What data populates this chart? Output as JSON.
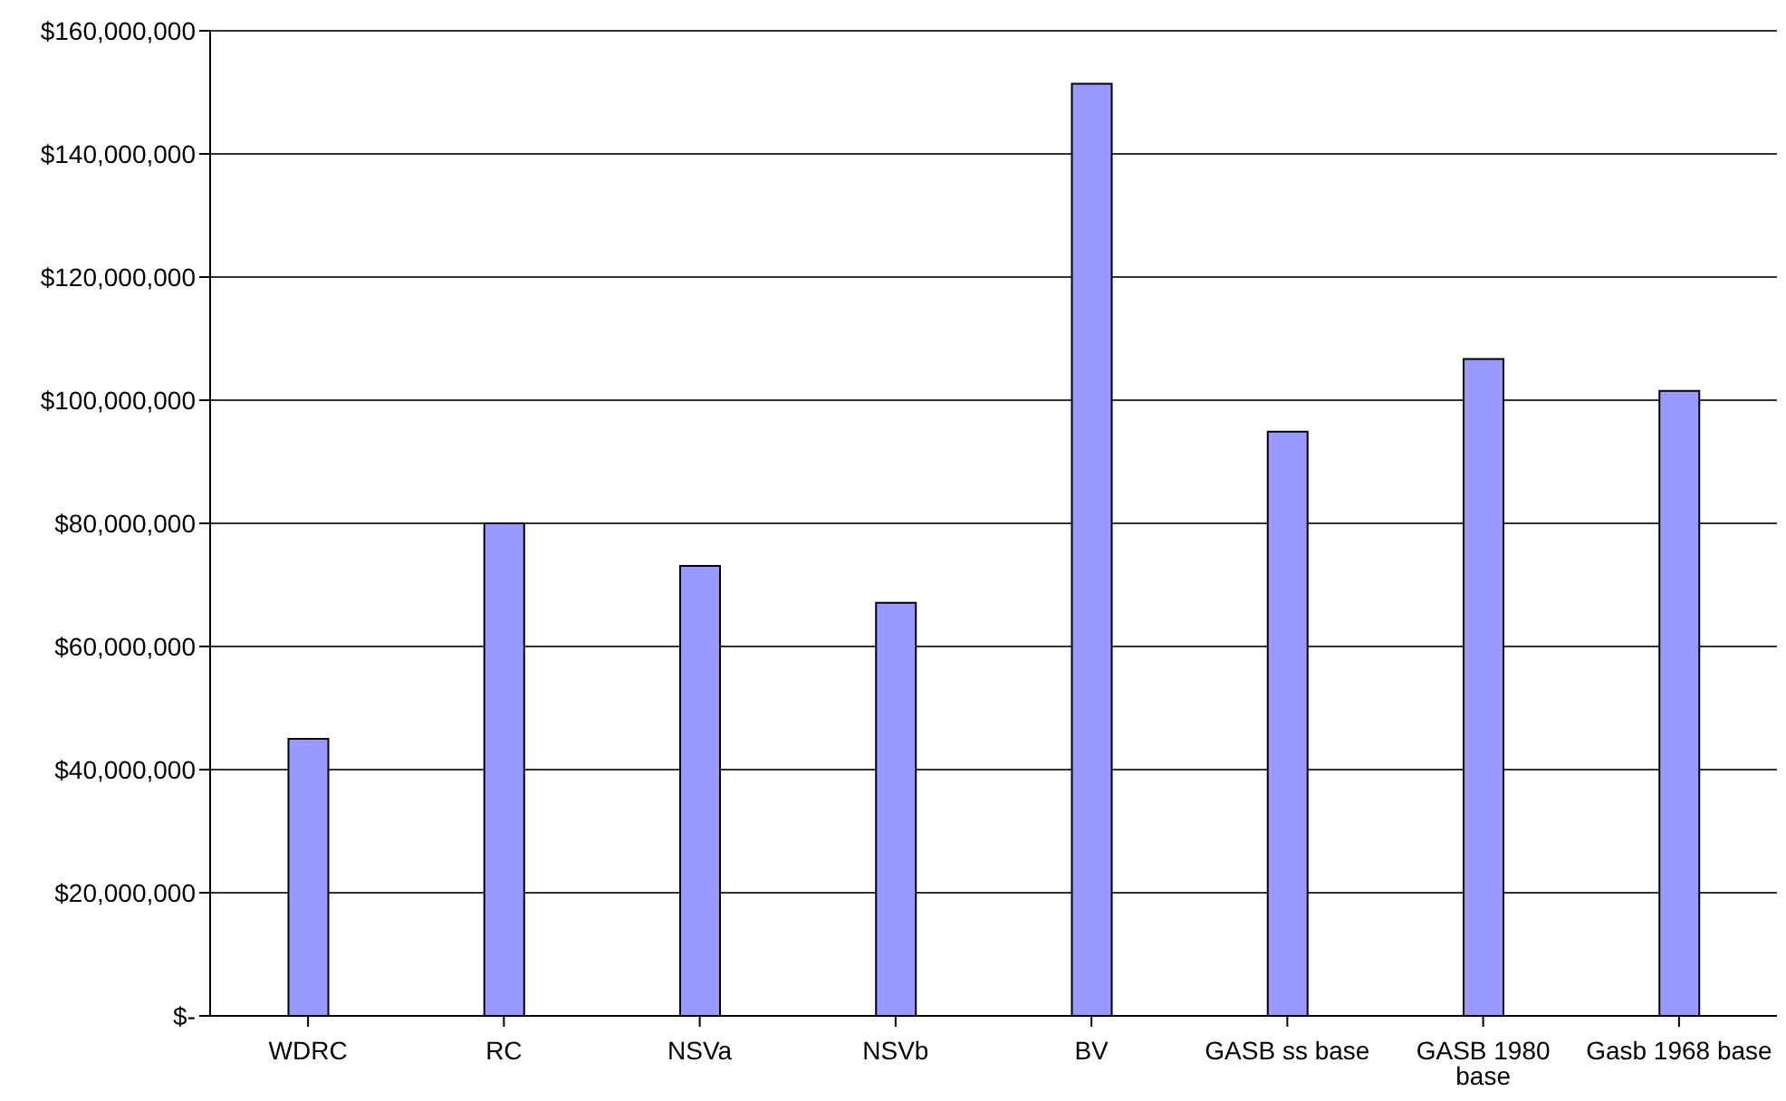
{
  "chart_data": {
    "type": "bar",
    "categories": [
      "WDRC",
      "RC",
      "NSVa",
      "NSVb",
      "BV",
      "GASB ss base",
      "GASB 1980 base",
      "Gasb 1968 base"
    ],
    "values": [
      45000000,
      80000000,
      73100000,
      67100000,
      151400000,
      94900000,
      106700000,
      101500000
    ],
    "color": "#9999ff",
    "ylim": [
      0,
      160000000
    ],
    "yticks": [
      {
        "value": 0,
        "label": "$-"
      },
      {
        "value": 20000000,
        "label": "$20,000,000"
      },
      {
        "value": 40000000,
        "label": "$40,000,000"
      },
      {
        "value": 60000000,
        "label": "$60,000,000"
      },
      {
        "value": 80000000,
        "label": "$80,000,000"
      },
      {
        "value": 100000000,
        "label": "$100,000,000"
      },
      {
        "value": 120000000,
        "label": "$120,000,000"
      },
      {
        "value": 140000000,
        "label": "$140,000,000"
      },
      {
        "value": 160000000,
        "label": "$160,000,000"
      }
    ],
    "grid": "y",
    "legend": false
  }
}
